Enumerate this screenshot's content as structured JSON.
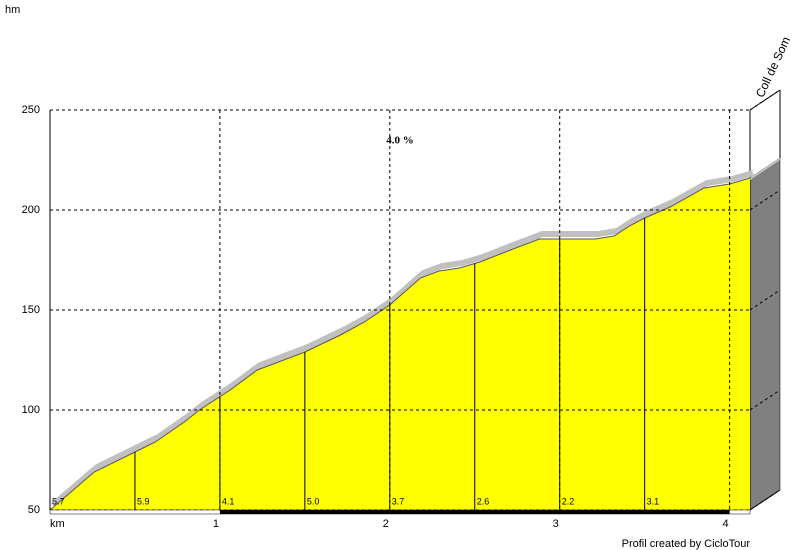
{
  "chart_data": {
    "type": "area",
    "y_label": "hm",
    "x_label": "km",
    "summit": "Coll de Som",
    "annotation": "4.0 %",
    "credit": "Profil created by CicloTour",
    "color": "#ffff00",
    "x": [
      0,
      0.26,
      0.5,
      0.62,
      0.79,
      0.88,
      0.97,
      1.06,
      1.22,
      1.5,
      1.71,
      1.85,
      2.0,
      2.18,
      2.29,
      2.41,
      2.53,
      2.71,
      2.88,
      3.0,
      3.21,
      3.32,
      3.41,
      3.5,
      3.65,
      3.85,
      4.0,
      4.12
    ],
    "values": [
      50,
      69,
      79,
      84,
      94,
      100,
      105,
      110,
      120,
      129,
      137.5,
      144,
      152.5,
      166,
      169.5,
      171,
      174,
      180,
      185.5,
      185.5,
      185.5,
      187,
      192,
      196,
      201.5,
      211,
      213,
      216
    ],
    "gradients": {
      "x": [
        0,
        0.5,
        1,
        1.5,
        2,
        2.5,
        3,
        3.5
      ],
      "values": [
        5.7,
        5.9,
        4.1,
        5.0,
        3.7,
        2.6,
        2.2,
        3.1
      ],
      "value_labels": [
        "5.7",
        "5.9",
        "4.1",
        "5.0",
        "3.7",
        "2.6",
        "2.2",
        "3.1"
      ]
    },
    "xlim": [
      0,
      4.12
    ],
    "xticks": [
      1,
      2,
      3,
      4
    ],
    "ylim": [
      50,
      250
    ],
    "yticks": [
      50,
      100,
      150,
      200,
      250
    ],
    "grid": true
  }
}
